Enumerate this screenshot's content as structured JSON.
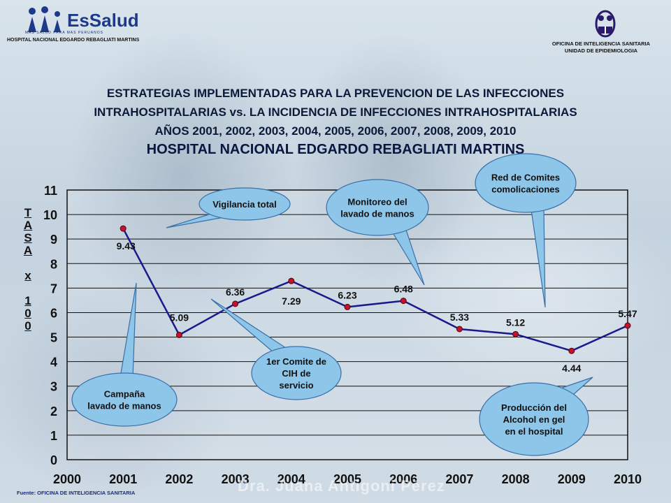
{
  "header": {
    "logo_name": "EsSalud",
    "logo_tagline": "MAS SALUD PARA MAS PERUANOS",
    "hospital_small": "HOSPITAL NACIONAL EDGARDO REBAGLIATI MARTINS",
    "office_line1": "OFICINA DE INTELIGENCIA SANITARIA",
    "office_line2": "UNIDAD DE EPIDEMIOLOGIA"
  },
  "title": {
    "line1": "ESTRATEGIAS IMPLEMENTADAS PARA LA PREVENCION DE LAS INFECCIONES",
    "line2": "INTRAHOSPITALARIAS vs. LA INCIDENCIA DE INFECCIONES INTRAHOSPITALARIAS",
    "line3": "AÑOS  2001, 2002, 2003, 2004, 2005, 2006, 2007, 2008, 2009, 2010",
    "line4": "HOSPITAL NACIONAL EDGARDO REBAGLIATI MARTINS"
  },
  "footer": "Fuente: OFICINA DE  INTELIGENCIA SANITARIA",
  "watermark": "Dra. Juana Antigoni Pérez",
  "colors": {
    "line": "#1a1a8c",
    "marker": "#c8102e",
    "bubble": "#8ec6ea",
    "bubble_stroke": "#3a6fa8"
  },
  "chart_data": {
    "type": "line",
    "ylabel": "TASA x 100",
    "ylabel_letters": [
      "T",
      "A",
      "S",
      "A",
      "",
      "x",
      "",
      "1",
      "0",
      "0"
    ],
    "x": [
      "2000",
      "2001",
      "2002",
      "2003",
      "2004",
      "2005",
      "2006",
      "2007",
      "2008",
      "2009",
      "2010"
    ],
    "yticks": [
      "0",
      "1",
      "2",
      "3",
      "4",
      "5",
      "6",
      "7",
      "8",
      "9",
      "10",
      "11"
    ],
    "ylim": [
      0,
      11
    ],
    "grid": true,
    "series": [
      {
        "values": [
          null,
          9.43,
          5.09,
          6.36,
          7.29,
          6.23,
          6.48,
          5.33,
          5.12,
          4.44,
          5.47
        ],
        "labels": [
          "",
          "9.43",
          "5.09",
          "6.36",
          "7.29",
          "6.23",
          "6.48",
          "5.33",
          "5.12",
          "4.44",
          "5.47"
        ]
      }
    ],
    "annotations": [
      {
        "id": "vigilancia",
        "lines": [
          "Vigilancia total"
        ]
      },
      {
        "id": "monitoreo",
        "lines": [
          "Monitoreo del",
          "lavado de manos"
        ]
      },
      {
        "id": "comites",
        "lines": [
          "Red de Comites",
          "comolicaciones"
        ]
      },
      {
        "id": "campana",
        "lines": [
          "Campaña",
          "lavado de manos"
        ]
      },
      {
        "id": "comite1",
        "lines": [
          "1er Comite de",
          "CIH de",
          "servicio"
        ]
      },
      {
        "id": "alcohol",
        "lines": [
          "Producción del",
          "Alcohol en gel",
          "en el hospital"
        ]
      }
    ]
  }
}
